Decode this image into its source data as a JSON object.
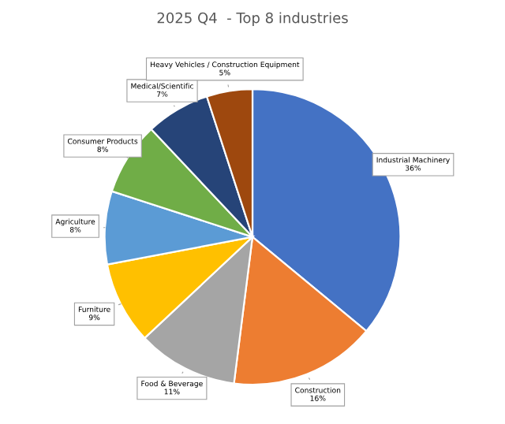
{
  "chart_data": {
    "type": "pie",
    "title": "2025 Q4  - Top 8 industries",
    "categories": [
      "Industrial Machinery",
      "Construction",
      "Food & Beverage",
      "Furniture",
      "Agriculture",
      "Consumer Products",
      "Medical/Scientific",
      "Heavy Vehicles / Construction Equipment"
    ],
    "values": [
      36,
      16,
      11,
      9,
      8,
      8,
      7,
      5
    ],
    "value_labels": [
      "36%",
      "16%",
      "11%",
      "9%",
      "8%",
      "8%",
      "7%",
      "5%"
    ],
    "colors": [
      "#4472c4",
      "#ed7d31",
      "#a5a5a5",
      "#ffc000",
      "#5b9bd5",
      "#70ad47",
      "#264478",
      "#9e480e"
    ]
  }
}
